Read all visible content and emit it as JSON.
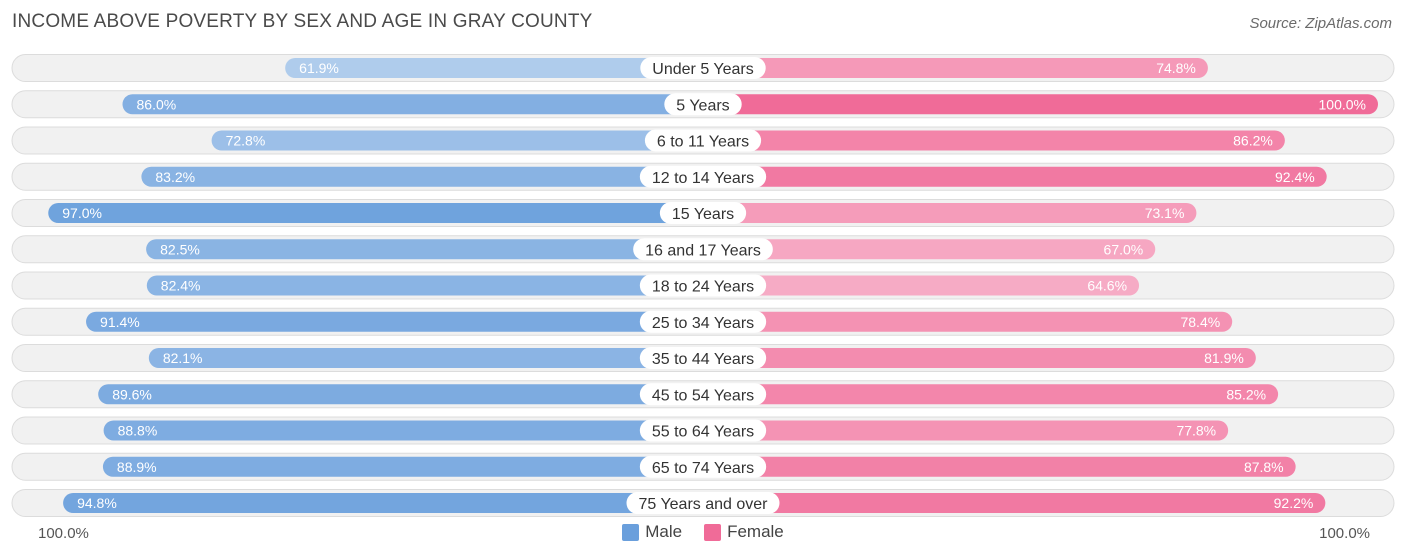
{
  "title": "INCOME ABOVE POVERTY BY SEX AND AGE IN GRAY COUNTY",
  "source": "Source: ZipAtlas.com",
  "axis": {
    "left_label": "100.0%",
    "right_label": "100.0%"
  },
  "legend": {
    "male_label": "Male",
    "female_label": "Female"
  },
  "colors": {
    "male": "#6a9fdc",
    "female": "#f06b98",
    "row_bg": "#f1f1f1"
  },
  "chart_data": {
    "type": "bar",
    "orientation": "horizontal-diverging",
    "title": "INCOME ABOVE POVERTY BY SEX AND AGE IN GRAY COUNTY",
    "categories": [
      "Under 5 Years",
      "5 Years",
      "6 to 11 Years",
      "12 to 14 Years",
      "15 Years",
      "16 and 17 Years",
      "18 to 24 Years",
      "25 to 34 Years",
      "35 to 44 Years",
      "45 to 54 Years",
      "55 to 64 Years",
      "65 to 74 Years",
      "75 Years and over"
    ],
    "series": [
      {
        "name": "Male",
        "values": [
          61.9,
          86.0,
          72.8,
          83.2,
          97.0,
          82.5,
          82.4,
          91.4,
          82.1,
          89.6,
          88.8,
          88.9,
          94.8
        ]
      },
      {
        "name": "Female",
        "values": [
          74.8,
          100.0,
          86.2,
          92.4,
          73.1,
          67.0,
          64.6,
          78.4,
          81.9,
          85.2,
          77.8,
          87.8,
          92.2
        ]
      }
    ],
    "value_labels": {
      "Male": [
        "61.9%",
        "86.0%",
        "72.8%",
        "83.2%",
        "97.0%",
        "82.5%",
        "82.4%",
        "91.4%",
        "82.1%",
        "89.6%",
        "88.8%",
        "88.9%",
        "94.8%"
      ],
      "Female": [
        "74.8%",
        "100.0%",
        "86.2%",
        "92.4%",
        "73.1%",
        "67.0%",
        "64.6%",
        "78.4%",
        "81.9%",
        "85.2%",
        "77.8%",
        "87.8%",
        "92.2%"
      ]
    },
    "xlim": [
      0,
      100
    ],
    "legend_position": "bottom-center"
  }
}
